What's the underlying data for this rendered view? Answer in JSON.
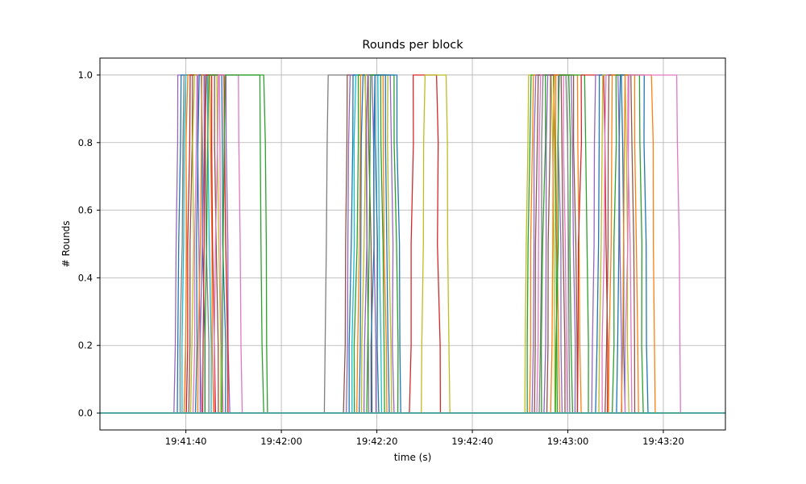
{
  "figure": {
    "background": "#ffffff",
    "grid_color": "#b0b0b0",
    "spine_color": "#000000"
  },
  "chart_data": {
    "type": "line",
    "title": "Rounds per block",
    "xlabel": "time (s)",
    "ylabel": "# Rounds",
    "grid": true,
    "legend": "none",
    "x_unit_note": "x values are seconds after 19:41:20",
    "xlim": [
      2,
      133
    ],
    "ylim": [
      -0.05,
      1.05
    ],
    "x_ticks": [
      {
        "t": 20,
        "label": "19:41:40"
      },
      {
        "t": 40,
        "label": "19:42:00"
      },
      {
        "t": 60,
        "label": "19:42:20"
      },
      {
        "t": 80,
        "label": "19:42:40"
      },
      {
        "t": 100,
        "label": "19:43:00"
      },
      {
        "t": 120,
        "label": "19:43:20"
      }
    ],
    "y_ticks": [
      {
        "v": 0.0,
        "label": "0.0"
      },
      {
        "v": 0.2,
        "label": "0.2"
      },
      {
        "v": 0.4,
        "label": "0.4"
      },
      {
        "v": 0.6,
        "label": "0.6"
      },
      {
        "v": 0.8,
        "label": "0.8"
      },
      {
        "v": 1.0,
        "label": "1.0"
      }
    ],
    "series_note": "each series is 0 everywhere except a single pulse to 1 between start and end (seconds after 19:41:20); null start means flat 0 line",
    "series": [
      {
        "color": "#9467bd",
        "start": 17.5,
        "end": 22.5
      },
      {
        "color": "#1f77b4",
        "start": 18.2,
        "end": 23.2
      },
      {
        "color": "#7f7f7f",
        "start": 18.8,
        "end": 24.0
      },
      {
        "color": "#17becf",
        "start": 19.2,
        "end": 24.5
      },
      {
        "color": "#ff7f0e",
        "start": 19.6,
        "end": 25.0
      },
      {
        "color": "#d62728",
        "start": 20.1,
        "end": 25.4
      },
      {
        "color": "#8c564b",
        "start": 20.6,
        "end": 26.0
      },
      {
        "color": "#bcbd22",
        "start": 21.0,
        "end": 26.5
      },
      {
        "color": "#e377c2",
        "start": 21.5,
        "end": 27.0
      },
      {
        "color": "#1f77b4",
        "start": 22.0,
        "end": 27.5
      },
      {
        "color": "#ff7f0e",
        "start": 22.5,
        "end": 28.0
      },
      {
        "color": "#9467bd",
        "start": 23.0,
        "end": 28.4
      },
      {
        "color": "#d62728",
        "start": 23.5,
        "end": 28.0
      },
      {
        "color": "#2ca02c",
        "start": 24.0,
        "end": 36.3
      },
      {
        "color": "#e377c2",
        "start": 26.0,
        "end": 31.0
      },
      {
        "color": "#2ca02c",
        "start": 27.5,
        "end": 35.5
      },
      {
        "color": "#7f7f7f",
        "start": 49.0,
        "end": 57.5
      },
      {
        "color": "#8c564b",
        "start": 53.0,
        "end": 58.2
      },
      {
        "color": "#9467bd",
        "start": 53.6,
        "end": 59.0
      },
      {
        "color": "#1f77b4",
        "start": 54.2,
        "end": 59.6
      },
      {
        "color": "#17becf",
        "start": 54.8,
        "end": 60.2
      },
      {
        "color": "#2ca02c",
        "start": 55.3,
        "end": 60.8
      },
      {
        "color": "#ff7f0e",
        "start": 55.8,
        "end": 61.3
      },
      {
        "color": "#1f77b4",
        "start": 56.3,
        "end": 61.8
      },
      {
        "color": "#bcbd22",
        "start": 56.8,
        "end": 62.3
      },
      {
        "color": "#9467bd",
        "start": 57.3,
        "end": 62.8
      },
      {
        "color": "#2ca02c",
        "start": 57.9,
        "end": 63.6
      },
      {
        "color": "#1f77b4",
        "start": 58.8,
        "end": 64.2
      },
      {
        "color": "#d62728",
        "start": 66.8,
        "end": 72.5
      },
      {
        "color": "#bcbd22",
        "start": 69.3,
        "end": 74.5
      },
      {
        "color": "#bcbd22",
        "start": 91.0,
        "end": 96.5
      },
      {
        "color": "#2ca02c",
        "start": 91.5,
        "end": 97.0
      },
      {
        "color": "#ff7f0e",
        "start": 92.0,
        "end": 97.5
      },
      {
        "color": "#9467bd",
        "start": 92.5,
        "end": 98.0
      },
      {
        "color": "#8c564b",
        "start": 93.0,
        "end": 98.6
      },
      {
        "color": "#e377c2",
        "start": 93.5,
        "end": 99.1
      },
      {
        "color": "#7f7f7f",
        "start": 94.0,
        "end": 99.6
      },
      {
        "color": "#2ca02c",
        "start": 94.5,
        "end": 100.2
      },
      {
        "color": "#9467bd",
        "start": 95.0,
        "end": 100.7
      },
      {
        "color": "#8c564b",
        "start": 95.6,
        "end": 101.2
      },
      {
        "color": "#ff7f0e",
        "start": 96.4,
        "end": 102.0
      },
      {
        "color": "#2ca02c",
        "start": 97.4,
        "end": 103.5
      },
      {
        "color": "#d62728",
        "start": 102.0,
        "end": 107.5
      },
      {
        "color": "#9467bd",
        "start": 105.0,
        "end": 110.5
      },
      {
        "color": "#1f77b4",
        "start": 105.8,
        "end": 111.2
      },
      {
        "color": "#bcbd22",
        "start": 106.5,
        "end": 112.0
      },
      {
        "color": "#e377c2",
        "start": 107.2,
        "end": 112.6
      },
      {
        "color": "#8c564b",
        "start": 107.8,
        "end": 113.2
      },
      {
        "color": "#ff7f0e",
        "start": 108.5,
        "end": 114.0
      },
      {
        "color": "#2ca02c",
        "start": 109.3,
        "end": 115.0
      },
      {
        "color": "#1f77b4",
        "start": 110.2,
        "end": 116.0
      },
      {
        "color": "#ff7f0e",
        "start": 111.2,
        "end": 117.5
      },
      {
        "color": "#e377c2",
        "start": 112.0,
        "end": 122.8
      },
      {
        "color": "#ff7f0e",
        "start": null,
        "end": null
      },
      {
        "color": "#17becf",
        "start": null,
        "end": null
      }
    ]
  }
}
